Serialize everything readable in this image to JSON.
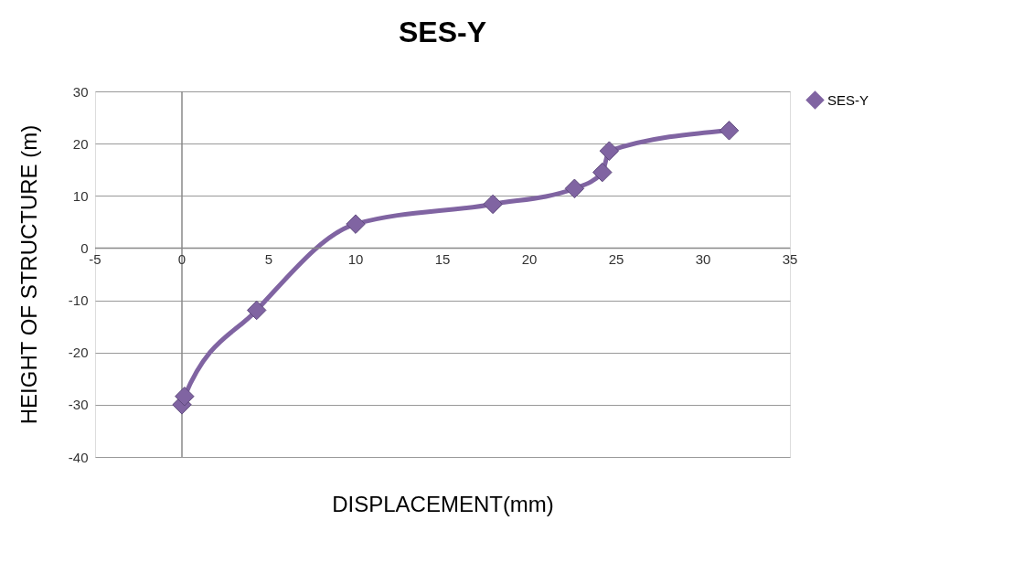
{
  "chart_data": {
    "type": "line",
    "title": "SES-Y",
    "xlabel": "DISPLACEMENT(mm)",
    "ylabel": "HEIGHT OF STRUCTURE (m)",
    "x": [
      0,
      0.15,
      4.3,
      10,
      17.9,
      22.6,
      24.2,
      24.6,
      31.5
    ],
    "series": [
      {
        "name": "SES-Y",
        "color": "#8064a2",
        "values": [
          -30,
          -28.4,
          -11.9,
          4.6,
          8.4,
          11.4,
          14.5,
          18.6,
          22.5
        ]
      }
    ],
    "xlim": [
      -5,
      35
    ],
    "xticks": [
      -5,
      0,
      5,
      10,
      15,
      20,
      25,
      30,
      35
    ],
    "ylim": [
      -40,
      30
    ],
    "yticks": [
      -40,
      -30,
      -20,
      -10,
      0,
      10,
      20,
      30
    ],
    "grid": "y",
    "legend": "right",
    "marker": "diamond",
    "line_style": "solid"
  }
}
